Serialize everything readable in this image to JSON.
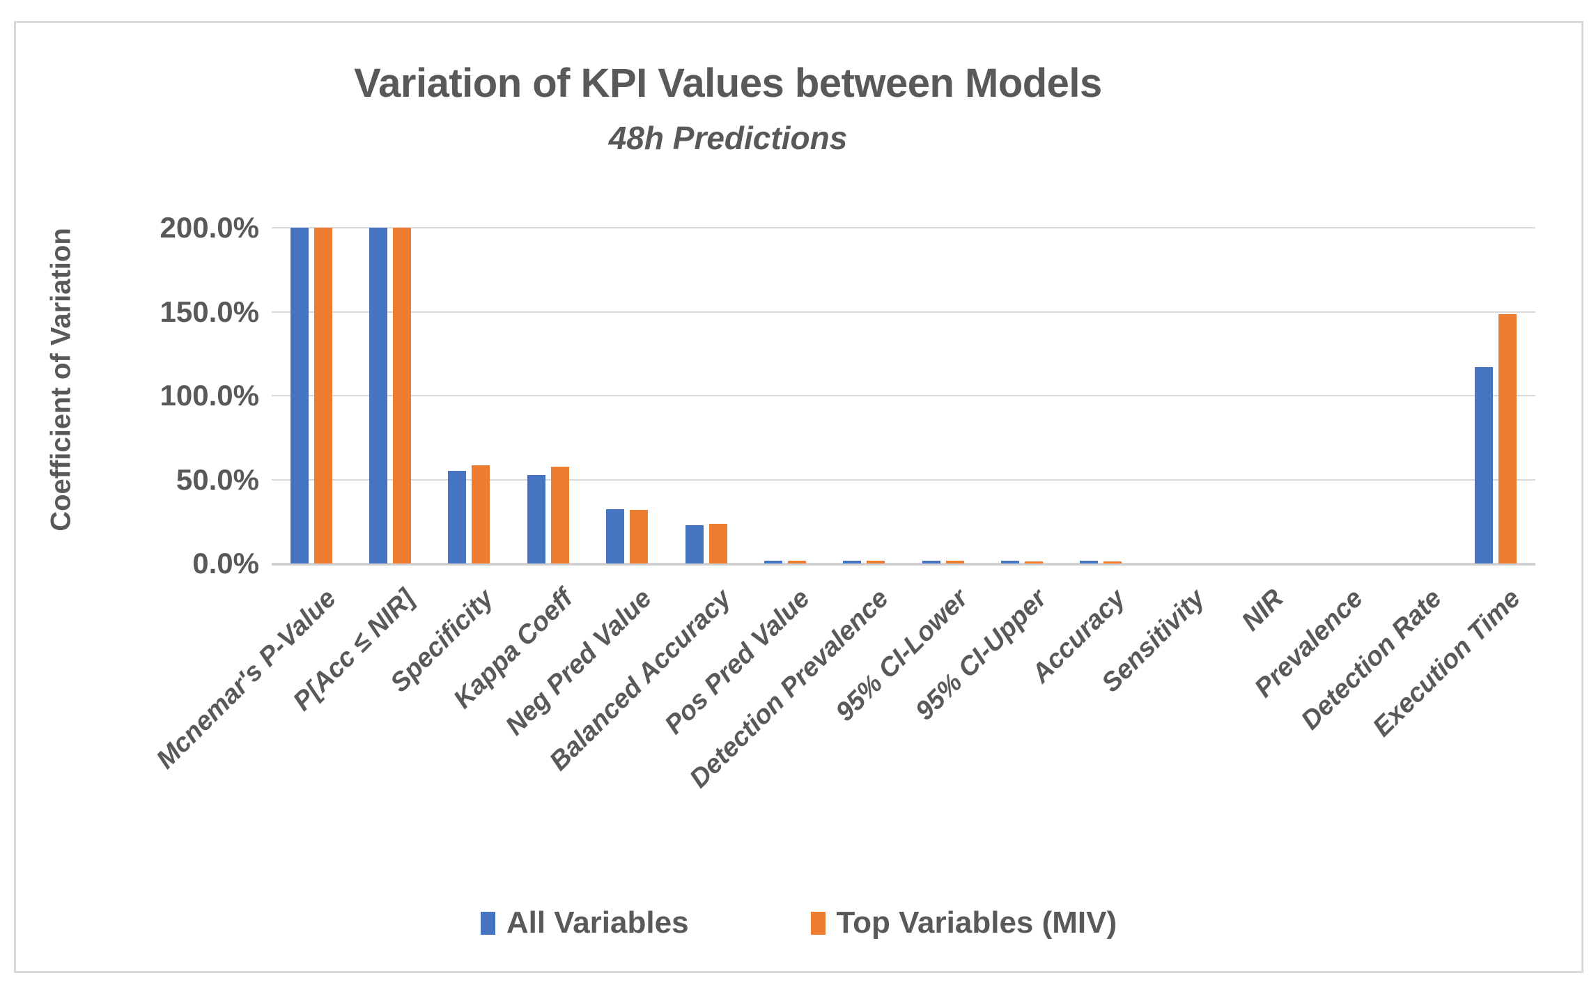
{
  "title": "Variation of KPI Values between Models",
  "subtitle": "48h Predictions",
  "y_axis_title": "Coefficient of Variation",
  "legend": {
    "items": [
      {
        "label": "All Variables",
        "color": "#4674C1"
      },
      {
        "label": "Top Variables (MIV)",
        "color": "#ED7D31"
      }
    ]
  },
  "colors": {
    "series_blue": "#4674C1",
    "series_orange": "#ED7D31",
    "text_gray": "#595959",
    "gridline_gray": "#D9D9D9",
    "axis_gray": "#D2D2D2",
    "frame_border": "#D9D9D9"
  },
  "chart_data": {
    "type": "bar",
    "title": "Variation of KPI Values between Models",
    "subtitle": "48h Predictions",
    "xlabel": "",
    "ylabel": "Coefficient of Variation",
    "ylim": [
      0,
      200
    ],
    "ytick_values": [
      0,
      50,
      100,
      150,
      200
    ],
    "ytick_labels": [
      "0.0%",
      "50.0%",
      "100.0%",
      "150.0%",
      "200.0%"
    ],
    "grid": "horizontal-only",
    "legend_position": "bottom-center",
    "categories": [
      "Mcnemar's P-Value",
      "P[Acc ≤ NIR]",
      "Specificity",
      "Kappa Coeff",
      "Neg Pred Value",
      "Balanced Accuracy",
      "Pos Pred Value",
      "Detection Prevalence",
      "95% CI-Lower",
      "95% CI-Upper",
      "Accuracy",
      "Sensitivity",
      "NIR",
      "Prevalence",
      "Detection Rate",
      "Execution Time"
    ],
    "series": [
      {
        "name": "All Variables",
        "color": "#4674C1",
        "values": [
          200.0,
          200.0,
          55.2,
          52.7,
          32.4,
          22.8,
          1.5,
          1.5,
          1.7,
          1.5,
          1.8,
          0,
          0,
          0,
          0,
          117.0
        ]
      },
      {
        "name": "Top Variables (MIV)",
        "color": "#ED7D31",
        "values": [
          200.0,
          200.0,
          58.5,
          57.7,
          32.0,
          23.7,
          1.5,
          1.5,
          1.5,
          1.3,
          1.3,
          0,
          0,
          0,
          0,
          148.5
        ]
      }
    ],
    "notes": "Bars for Mcnemar's P-Value and P[Acc ≤ NIR] are clipped at the 200.0% axis maximum"
  }
}
